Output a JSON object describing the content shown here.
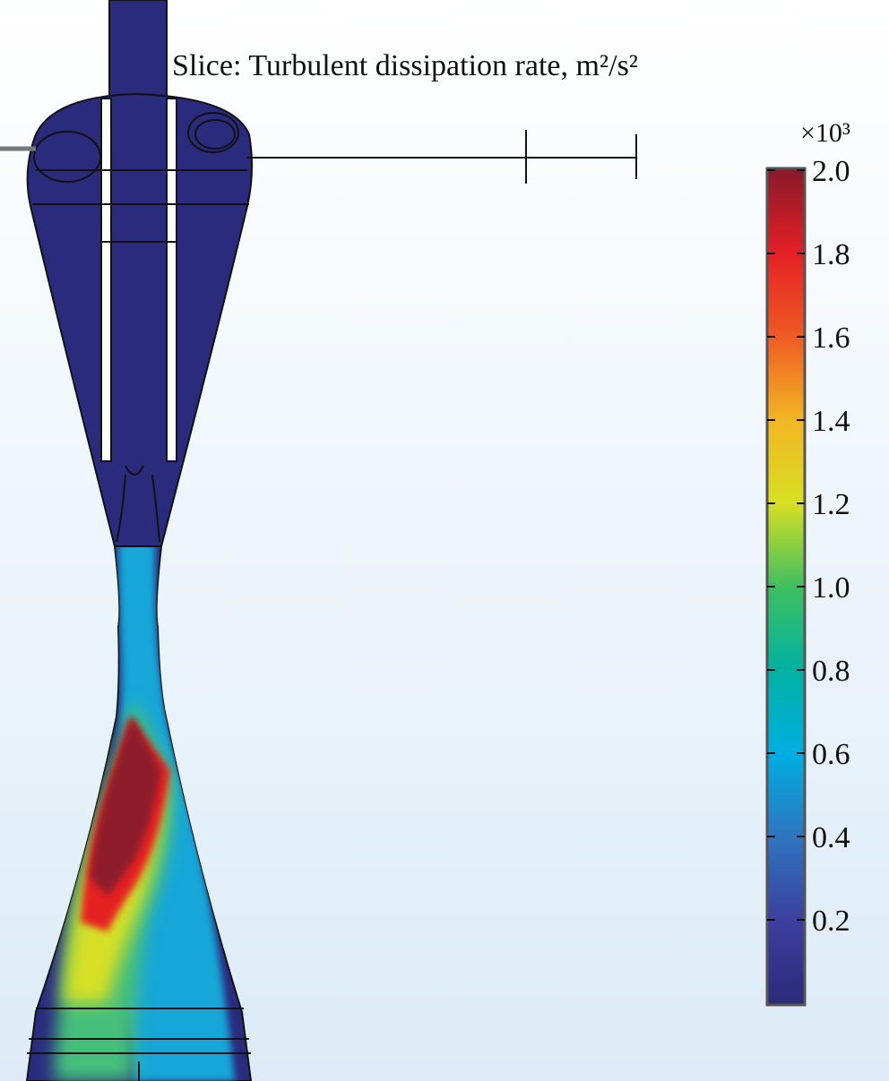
{
  "title": "Slice: Turbulent dissipation rate, m²/s²",
  "colorbar": {
    "multiplier": "×10³",
    "range": [
      0,
      2.0
    ],
    "ticks": [
      {
        "value": 2.0,
        "label": "2.0"
      },
      {
        "value": 1.8,
        "label": "1.8"
      },
      {
        "value": 1.6,
        "label": "1.6"
      },
      {
        "value": 1.4,
        "label": "1.4"
      },
      {
        "value": 1.2,
        "label": "1.2"
      },
      {
        "value": 1.0,
        "label": "1.0"
      },
      {
        "value": 0.8,
        "label": "0.8"
      },
      {
        "value": 0.6,
        "label": "0.6"
      },
      {
        "value": 0.4,
        "label": "0.4"
      },
      {
        "value": 0.2,
        "label": "0.2"
      }
    ]
  }
}
